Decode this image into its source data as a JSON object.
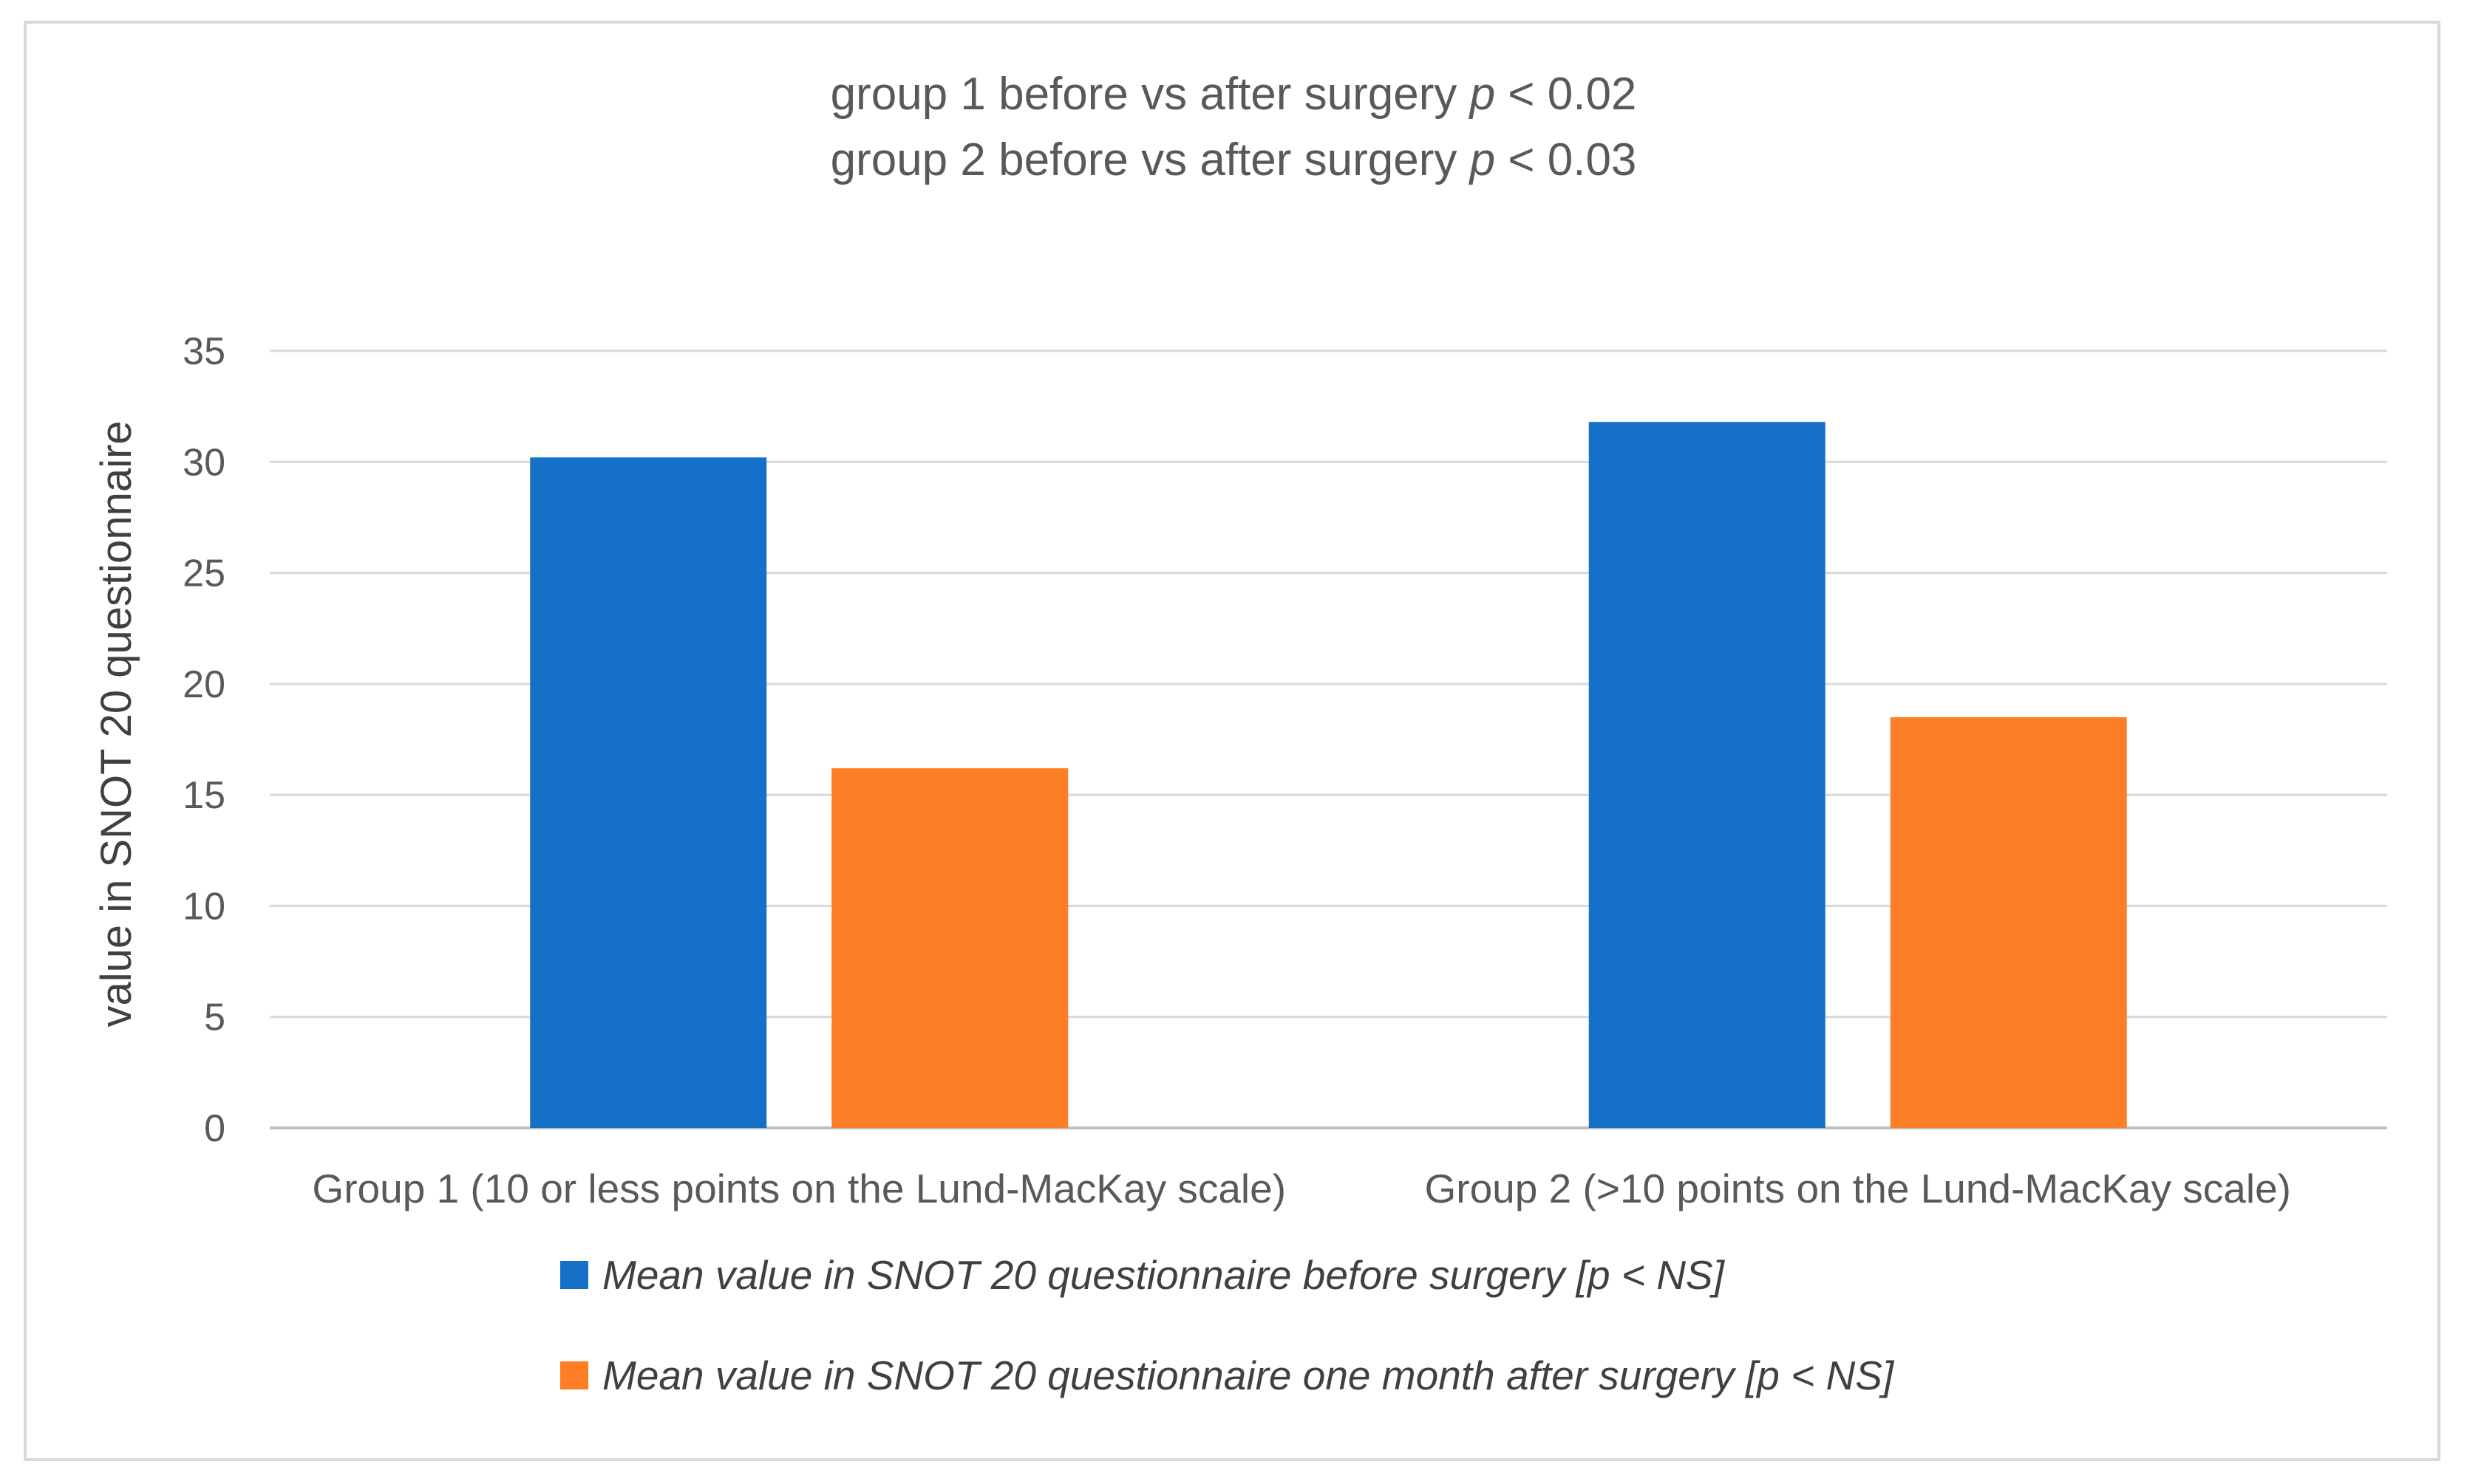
{
  "chart_data": {
    "type": "bar",
    "title_lines": [
      {
        "prefix": "group 1 before vs after surgery ",
        "p": "p",
        "suffix": " < 0.02"
      },
      {
        "prefix": "group 2 before vs after surgery ",
        "p": "p",
        "suffix": " < 0.03"
      }
    ],
    "xlabel": "",
    "ylabel": "value in SNOT 20 questionnaire",
    "ylim": [
      0,
      35
    ],
    "yticks": [
      0,
      5,
      10,
      15,
      20,
      25,
      30,
      35
    ],
    "grid": true,
    "categories": [
      "Group 1 (10 or less points on the Lund-MacKay scale)",
      "Group 2 (>10 points on the Lund-MacKay scale)"
    ],
    "series": [
      {
        "name": "Mean value in SNOT 20 questionnaire before surgery [p < NS]",
        "color": "#1570c8",
        "values": [
          30.2,
          31.8
        ]
      },
      {
        "name": "Mean value in SNOT 20 questionnaire one month after surgery [p < NS]",
        "color": "#fd7e25",
        "values": [
          16.2,
          18.5
        ]
      }
    ],
    "legend_position": "bottom"
  }
}
